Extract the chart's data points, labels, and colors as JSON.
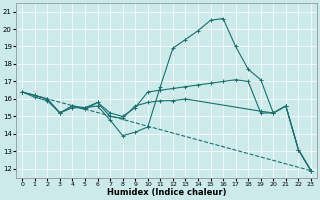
{
  "xlabel": "Humidex (Indice chaleur)",
  "xlim": [
    -0.5,
    23.5
  ],
  "ylim": [
    11.5,
    21.5
  ],
  "yticks": [
    12,
    13,
    14,
    15,
    16,
    17,
    18,
    19,
    20,
    21
  ],
  "xticks": [
    0,
    1,
    2,
    3,
    4,
    5,
    6,
    7,
    8,
    9,
    10,
    11,
    12,
    13,
    14,
    15,
    16,
    17,
    18,
    19,
    20,
    21,
    22,
    23
  ],
  "bg_color": "#cceaea",
  "line_color": "#1a7070",
  "series": [
    {
      "x": [
        0,
        1,
        2,
        3,
        4,
        5,
        6,
        7,
        8,
        9,
        10,
        11,
        12,
        13,
        14,
        15,
        16,
        17,
        18,
        19,
        20,
        21,
        22,
        23
      ],
      "y": [
        16.4,
        16.2,
        16.0,
        15.2,
        15.5,
        15.5,
        15.6,
        14.8,
        13.9,
        14.1,
        14.4,
        16.7,
        18.9,
        19.4,
        19.9,
        20.5,
        20.6,
        19.0,
        17.7,
        17.1,
        15.2,
        15.6,
        13.1,
        11.9
      ]
    },
    {
      "x": [
        0,
        1,
        2,
        3,
        4,
        5,
        6,
        7,
        8,
        9,
        10,
        11,
        12,
        13,
        14,
        15,
        16,
        17,
        18,
        19,
        20,
        21,
        22,
        23
      ],
      "y": [
        16.4,
        16.2,
        16.0,
        15.2,
        15.6,
        15.5,
        15.8,
        15.2,
        15.0,
        15.5,
        16.4,
        16.5,
        16.6,
        16.7,
        16.8,
        16.9,
        17.0,
        17.1,
        17.0,
        15.2,
        15.2,
        15.6,
        13.1,
        11.9
      ]
    },
    {
      "x": [
        0,
        23
      ],
      "y": [
        16.4,
        11.9
      ]
    },
    {
      "x": [
        0,
        1,
        2,
        3,
        4,
        5,
        6,
        7,
        8,
        9,
        10,
        11,
        12,
        13,
        19,
        20,
        21,
        22,
        23
      ],
      "y": [
        16.4,
        16.1,
        15.9,
        15.2,
        15.6,
        15.4,
        15.8,
        15.0,
        14.9,
        15.6,
        15.8,
        15.9,
        15.9,
        16.0,
        15.3,
        15.2,
        15.6,
        13.1,
        11.9
      ]
    }
  ]
}
